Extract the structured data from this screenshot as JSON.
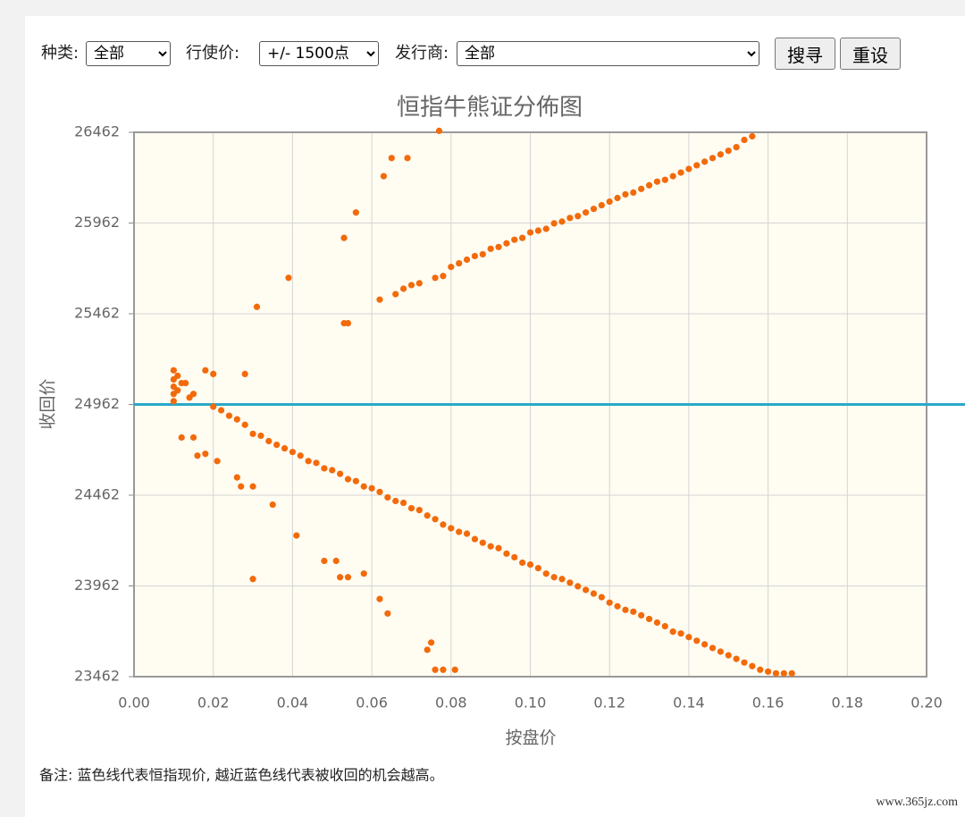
{
  "form": {
    "category_label": "种类:",
    "category_value": "全部",
    "strike_label": "行使价:",
    "strike_value": "+/- 1500点",
    "issuer_label": "发行商:",
    "issuer_value": "全部",
    "search_button": "搜寻",
    "reset_button": "重设"
  },
  "chart_data": {
    "type": "scatter",
    "title": "恒指牛熊证分佈图",
    "x_label": "按盘价",
    "y_label": "收回价",
    "color": "#f26a0a",
    "reference_line": {
      "value": 24962,
      "color": "#2aa8c9"
    },
    "xlim": [
      0,
      0.2
    ],
    "ylim": [
      23462,
      26462
    ],
    "grid": true,
    "xticks": [
      {
        "value": 0,
        "label": "0.00"
      },
      {
        "value": 0.02,
        "label": "0.02"
      },
      {
        "value": 0.04,
        "label": "0.04"
      },
      {
        "value": 0.06,
        "label": "0.06"
      },
      {
        "value": 0.08,
        "label": "0.08"
      },
      {
        "value": 0.1,
        "label": "0.10"
      },
      {
        "value": 0.12,
        "label": "0.12"
      },
      {
        "value": 0.14,
        "label": "0.14"
      },
      {
        "value": 0.16,
        "label": "0.16"
      },
      {
        "value": 0.18,
        "label": "0.18"
      },
      {
        "value": 0.2,
        "label": "0.20"
      }
    ],
    "yticks": [
      23462,
      23962,
      24462,
      24962,
      25462,
      25962,
      26462
    ],
    "x": [
      0.01,
      0.01,
      0.01,
      0.01,
      0.01,
      0.011,
      0.011,
      0.012,
      0.013,
      0.014,
      0.015,
      0.031,
      0.039,
      0.053,
      0.056,
      0.063,
      0.065,
      0.069,
      0.077,
      0.053,
      0.054,
      0.028,
      0.018,
      0.02,
      0.012,
      0.015,
      0.016,
      0.018,
      0.021,
      0.026,
      0.027,
      0.03,
      0.035,
      0.041,
      0.048,
      0.051,
      0.052,
      0.054,
      0.058,
      0.03,
      0.062,
      0.064,
      0.075,
      0.074,
      0.076,
      0.078,
      0.081,
      0.02,
      0.022,
      0.024,
      0.026,
      0.028,
      0.03,
      0.032,
      0.034,
      0.036,
      0.038,
      0.04,
      0.042,
      0.044,
      0.046,
      0.048,
      0.05,
      0.052,
      0.054,
      0.056,
      0.058,
      0.06,
      0.062,
      0.064,
      0.066,
      0.068,
      0.07,
      0.072,
      0.074,
      0.076,
      0.078,
      0.08,
      0.082,
      0.084,
      0.086,
      0.088,
      0.09,
      0.092,
      0.094,
      0.096,
      0.098,
      0.1,
      0.102,
      0.104,
      0.106,
      0.108,
      0.11,
      0.112,
      0.114,
      0.116,
      0.118,
      0.12,
      0.122,
      0.124,
      0.126,
      0.128,
      0.13,
      0.132,
      0.134,
      0.136,
      0.138,
      0.14,
      0.142,
      0.144,
      0.146,
      0.148,
      0.15,
      0.152,
      0.154,
      0.156,
      0.158,
      0.16,
      0.162,
      0.164,
      0.166,
      0.062,
      0.066,
      0.068,
      0.07,
      0.072,
      0.076,
      0.078,
      0.08,
      0.082,
      0.084,
      0.086,
      0.088,
      0.09,
      0.092,
      0.094,
      0.096,
      0.098,
      0.1,
      0.102,
      0.104,
      0.106,
      0.108,
      0.11,
      0.112,
      0.114,
      0.116,
      0.118,
      0.12,
      0.122,
      0.124,
      0.126,
      0.128,
      0.13,
      0.132,
      0.134,
      0.136,
      0.138,
      0.14,
      0.142,
      0.144,
      0.146,
      0.148,
      0.15,
      0.152,
      0.154,
      0.156
    ],
    "y": [
      24980,
      25020,
      25060,
      25100,
      25150,
      25120,
      25040,
      25080,
      25080,
      25000,
      25020,
      25500,
      25660,
      25880,
      26020,
      26220,
      26320,
      26320,
      26470,
      25410,
      25410,
      25130,
      25150,
      25130,
      24780,
      24780,
      24680,
      24690,
      24650,
      24560,
      24510,
      24510,
      24410,
      24240,
      24100,
      24100,
      24010,
      24010,
      24030,
      24000,
      23890,
      23810,
      23650,
      23610,
      23500,
      23500,
      23500,
      24950,
      24930,
      24900,
      24880,
      24850,
      24800,
      24790,
      24760,
      24740,
      24720,
      24700,
      24680,
      24650,
      24640,
      24610,
      24600,
      24580,
      24550,
      24540,
      24510,
      24500,
      24480,
      24450,
      24430,
      24420,
      24390,
      24380,
      24350,
      24330,
      24300,
      24280,
      24260,
      24250,
      24220,
      24200,
      24180,
      24170,
      24140,
      24120,
      24090,
      24080,
      24060,
      24030,
      24010,
      24000,
      23980,
      23960,
      23940,
      23920,
      23900,
      23870,
      23850,
      23830,
      23820,
      23800,
      23780,
      23760,
      23740,
      23710,
      23700,
      23680,
      23660,
      23640,
      23620,
      23600,
      23580,
      23560,
      23540,
      23520,
      23500,
      23490,
      23480,
      23480,
      23480,
      25540,
      25570,
      25600,
      25620,
      25630,
      25660,
      25670,
      25720,
      25740,
      25760,
      25780,
      25790,
      25820,
      25830,
      25850,
      25870,
      25880,
      25910,
      25920,
      25930,
      25960,
      25970,
      25990,
      26000,
      26020,
      26040,
      26060,
      26080,
      26100,
      26120,
      26130,
      26150,
      26170,
      26190,
      26200,
      26220,
      26240,
      26260,
      26280,
      26300,
      26320,
      26340,
      26360,
      26380,
      26420,
      26440
    ]
  },
  "note": "备注:  蓝色线代表恒指现价, 越近蓝色线代表被收回的机会越高。",
  "watermark": "www.365jz.com"
}
